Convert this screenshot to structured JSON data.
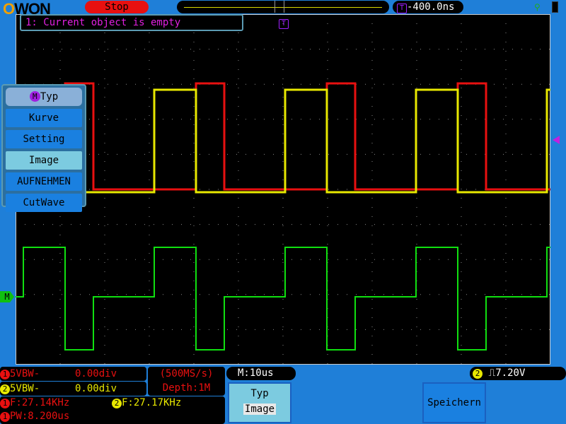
{
  "header": {
    "logo": "OWON",
    "run_state": "Stop",
    "trigger_offset": "-400.0ns",
    "trigger_marker": "T"
  },
  "message": "1: Current object is empty",
  "menu": {
    "title": "Typ",
    "title_badge": "M",
    "items": [
      {
        "label": "Kurve"
      },
      {
        "label": "Setting"
      },
      {
        "label": "Image",
        "selected": true
      },
      {
        "label": "AUFNEHMEN"
      },
      {
        "label": "CutWave"
      }
    ]
  },
  "channels": [
    {
      "badge": "1",
      "coupling": "5VBW-",
      "offset": "0.00div",
      "color": "#e81010"
    },
    {
      "badge": "2",
      "coupling": "5VBW-",
      "offset": "0.00div",
      "color": "#e8e800"
    }
  ],
  "acquisition": {
    "sample_rate": "(500MS/s)",
    "depth": "Depth:1M"
  },
  "measurements": [
    {
      "badge": "1",
      "text": "F:27.14KHz"
    },
    {
      "badge": "2",
      "text": "F:27.17KHz"
    },
    {
      "badge": "1",
      "text": "PW:8.200us"
    }
  ],
  "timebase": "M:10us",
  "trigger": {
    "badge": "2",
    "level": "7.20V",
    "edge_icon": "rising-edge-icon"
  },
  "softkeys": {
    "typ_label": "Typ",
    "typ_value": "Image",
    "save_label": "Speichern"
  },
  "markers": {
    "math": "M"
  },
  "colors": {
    "ch1": "#e81010",
    "ch2": "#e8e800",
    "math": "#10e010",
    "trigger": "#a020ff"
  }
}
